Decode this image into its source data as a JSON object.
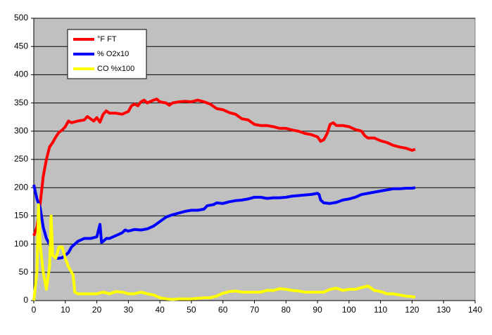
{
  "chart_data": {
    "type": "line",
    "xlim": [
      0,
      140
    ],
    "xticks": [
      0,
      10,
      20,
      30,
      40,
      50,
      60,
      70,
      80,
      90,
      100,
      110,
      120,
      130,
      140
    ],
    "ylim": [
      0,
      500
    ],
    "yticks": [
      0,
      50,
      100,
      150,
      200,
      250,
      300,
      350,
      400,
      450,
      500
    ],
    "grid": true,
    "legend": "upper left",
    "series": [
      {
        "name": "°F FT",
        "color": "#ff0000",
        "x": [
          0,
          1,
          2,
          3,
          4,
          5,
          6,
          7,
          8,
          9,
          10,
          11,
          12,
          14,
          16,
          17,
          18,
          19,
          20,
          21,
          22,
          23,
          24,
          26,
          28,
          30,
          31,
          32,
          33,
          34,
          35,
          36,
          38,
          39,
          40,
          42,
          43,
          44,
          46,
          48,
          50,
          52,
          54,
          56,
          58,
          60,
          62,
          64,
          66,
          68,
          70,
          72,
          74,
          76,
          78,
          80,
          82,
          84,
          86,
          88,
          90,
          91,
          92,
          93,
          94,
          95,
          96,
          98,
          100,
          102,
          104,
          105,
          106,
          108,
          110,
          112,
          114,
          116,
          118,
          120,
          121
        ],
        "values": [
          115,
          130,
          170,
          220,
          250,
          272,
          280,
          290,
          298,
          302,
          308,
          318,
          315,
          318,
          320,
          326,
          322,
          318,
          324,
          316,
          330,
          336,
          332,
          332,
          330,
          335,
          345,
          348,
          345,
          352,
          355,
          350,
          355,
          357,
          352,
          350,
          346,
          350,
          352,
          353,
          352,
          355,
          352,
          348,
          340,
          338,
          333,
          330,
          322,
          320,
          312,
          310,
          310,
          308,
          305,
          305,
          302,
          300,
          296,
          294,
          290,
          282,
          285,
          295,
          312,
          315,
          310,
          310,
          308,
          303,
          300,
          292,
          288,
          288,
          283,
          280,
          275,
          272,
          270,
          266,
          268
        ]
      },
      {
        "name": "% O2x10",
        "color": "#0000ff",
        "x": [
          0,
          1,
          2,
          3,
          4,
          5,
          6,
          7,
          8,
          9,
          10,
          11,
          12,
          13,
          14,
          16,
          18,
          20,
          21,
          21.5,
          22,
          23,
          24,
          26,
          28,
          29,
          30,
          32,
          34,
          36,
          38,
          40,
          42,
          44,
          46,
          48,
          50,
          52,
          54,
          55,
          57,
          58,
          60,
          62,
          64,
          66,
          68,
          70,
          72,
          74,
          76,
          78,
          80,
          82,
          84,
          86,
          88,
          90,
          90.5,
          91,
          92,
          94,
          96,
          98,
          100,
          102,
          104,
          106,
          108,
          110,
          112,
          114,
          116,
          118,
          120,
          121
        ],
        "values": [
          205,
          180,
          165,
          130,
          110,
          100,
          80,
          75,
          75,
          76,
          80,
          85,
          95,
          100,
          105,
          110,
          110,
          113,
          135,
          103,
          105,
          110,
          110,
          115,
          120,
          125,
          123,
          126,
          125,
          127,
          132,
          140,
          148,
          152,
          155,
          158,
          160,
          160,
          162,
          168,
          170,
          173,
          172,
          175,
          177,
          178,
          180,
          183,
          183,
          181,
          182,
          182,
          183,
          185,
          186,
          187,
          188,
          190,
          188,
          178,
          173,
          172,
          174,
          178,
          180,
          183,
          188,
          190,
          192,
          194,
          196,
          198,
          198,
          199,
          199,
          200
        ]
      },
      {
        "name": "CO %x100",
        "color": "#ffff00",
        "x": [
          0,
          1,
          1.5,
          2,
          3,
          4,
          5,
          5.5,
          6,
          7,
          8,
          9,
          10,
          11,
          12,
          12.5,
          13,
          14,
          16,
          18,
          20,
          22,
          24,
          26,
          28,
          30,
          32,
          34,
          36,
          38,
          40,
          42,
          44,
          46,
          48,
          50,
          52,
          54,
          56,
          58,
          60,
          62,
          64,
          66,
          68,
          70,
          72,
          74,
          76,
          78,
          80,
          82,
          84,
          86,
          88,
          90,
          92,
          94,
          96,
          98,
          100,
          102,
          104,
          106,
          107,
          108,
          110,
          112,
          114,
          116,
          118,
          120,
          121
        ],
        "values": [
          0,
          50,
          170,
          100,
          50,
          20,
          60,
          150,
          80,
          75,
          95,
          95,
          75,
          60,
          50,
          45,
          15,
          12,
          12,
          12,
          12,
          15,
          12,
          16,
          15,
          12,
          12,
          15,
          12,
          10,
          5,
          3,
          2,
          3,
          3,
          3,
          4,
          5,
          5,
          8,
          13,
          16,
          17,
          15,
          15,
          15,
          15,
          18,
          18,
          21,
          20,
          18,
          17,
          15,
          15,
          15,
          15,
          20,
          22,
          18,
          20,
          20,
          23,
          26,
          22,
          18,
          16,
          12,
          12,
          10,
          8,
          7,
          6
        ]
      }
    ]
  }
}
